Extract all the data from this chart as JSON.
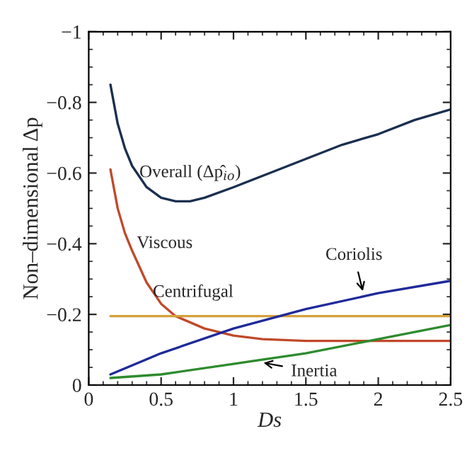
{
  "chart_data": {
    "type": "line",
    "xlabel": "Ds",
    "ylabel": "Non–dimensional Δp",
    "xlim": [
      0,
      2.5
    ],
    "ylim": [
      0,
      -1
    ],
    "xticks": [
      0,
      0.5,
      1,
      1.5,
      2,
      2.5
    ],
    "yticks": [
      0,
      {
        "value": -0.2,
        "label": "−0.2"
      },
      {
        "value": -0.4,
        "label": "−0.4"
      },
      {
        "value": -0.6,
        "label": "−0.6"
      },
      {
        "value": -0.8,
        "label": "−0.8"
      },
      {
        "value": -1,
        "label": "−1"
      }
    ],
    "grid": false,
    "legend": false,
    "series": [
      {
        "color": "#1b2f4f",
        "x": [
          0.15,
          0.2,
          0.25,
          0.3,
          0.4,
          0.5,
          0.6,
          0.7,
          0.8,
          1.0,
          1.25,
          1.5,
          1.75,
          2.0,
          2.25,
          2.5
        ],
        "values": [
          -0.85,
          -0.74,
          -0.67,
          -0.62,
          -0.56,
          -0.53,
          -0.52,
          -0.52,
          -0.53,
          -0.56,
          -0.6,
          -0.64,
          -0.68,
          -0.71,
          -0.75,
          -0.78
        ]
      },
      {
        "color": "#c0492a",
        "x": [
          0.15,
          0.2,
          0.25,
          0.3,
          0.4,
          0.5,
          0.6,
          0.8,
          1.0,
          1.2,
          1.5,
          2.0,
          2.5
        ],
        "values": [
          -0.61,
          -0.5,
          -0.43,
          -0.38,
          -0.29,
          -0.23,
          -0.195,
          -0.16,
          -0.14,
          -0.13,
          -0.125,
          -0.125,
          -0.125
        ]
      },
      {
        "color": "#d4a03a",
        "x": [
          0.15,
          2.5
        ],
        "values": [
          -0.195,
          -0.195
        ]
      },
      {
        "color": "#1f2a9a",
        "x": [
          0.15,
          0.5,
          1.0,
          1.5,
          2.0,
          2.5
        ],
        "values": [
          -0.03,
          -0.09,
          -0.16,
          -0.215,
          -0.26,
          -0.295
        ]
      },
      {
        "color": "#2e8b2e",
        "x": [
          0.15,
          0.5,
          1.0,
          1.5,
          2.0,
          2.5
        ],
        "values": [
          -0.02,
          -0.03,
          -0.06,
          -0.09,
          -0.13,
          -0.17
        ]
      }
    ],
    "annotations": [
      {
        "text": "Overall (Δp̂$_{io}$)",
        "x": 0.35,
        "y": -0.6
      },
      {
        "text": "Viscous",
        "x": 0.25,
        "y": -0.4
      },
      {
        "text": "Centrifugal",
        "x": 0.85,
        "y": -0.195
      },
      {
        "text": "Coriolis",
        "x": 1.9,
        "y": -0.255
      },
      {
        "text": "Inertia",
        "x": 1.18,
        "y": -0.065
      }
    ]
  }
}
